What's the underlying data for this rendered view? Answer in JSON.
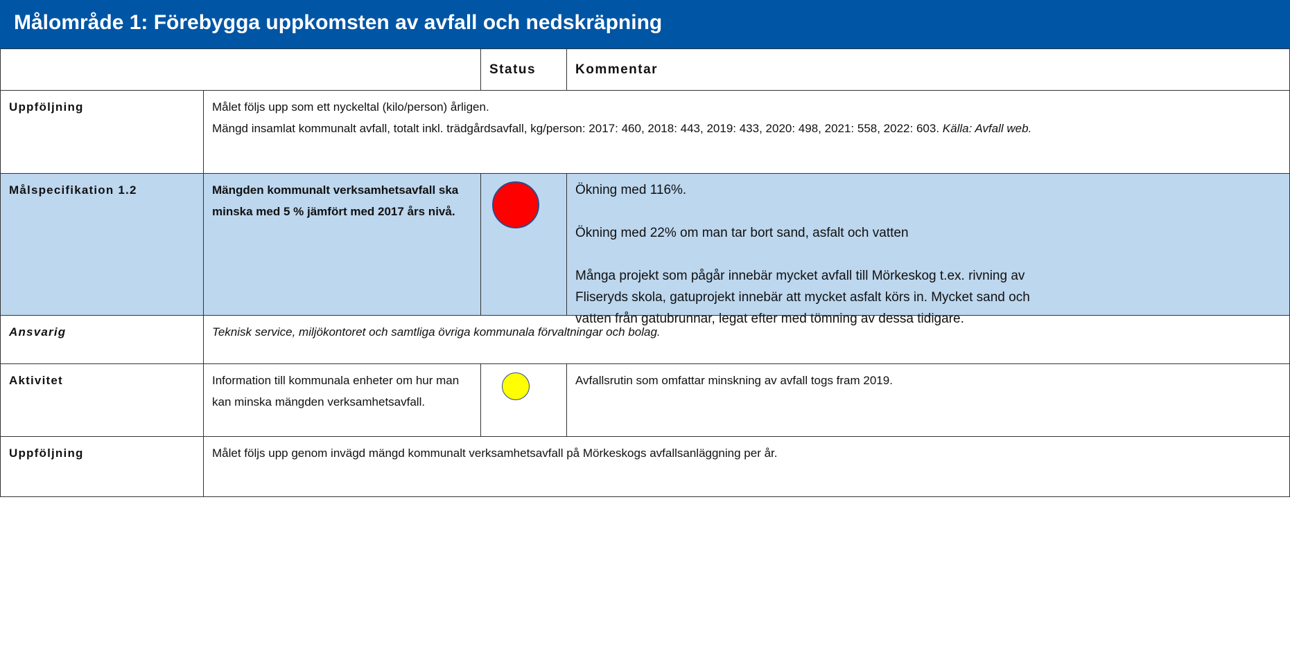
{
  "header": {
    "title": "Målområde 1: Förebygga uppkomsten av avfall och nedskräpning"
  },
  "table": {
    "columns": [
      "Status",
      "Kommentar"
    ],
    "rows": [
      {
        "label": "Uppföljning",
        "text": [
          "Målet följs upp som ett nyckeltal (kilo/person) årligen.",
          "Mängd insamlat kommunalt avfall, totalt inkl. trädgårdsavfall, kg/person: 2017: 460, 2018: 443, 2019: 433, 2020: 498, 2021: 558, 2022: 603."
        ],
        "source": "Källa: Avfall web."
      },
      {
        "label": "Målspecifikation 1.2",
        "goal": "Mängden kommunalt verksamhetsavfall ska minska med 5 % jämfört med 2017 års nivå.",
        "comments": [
          "Ökning med 116%.",
          "Ökning med 22% om man tar bort sand, asfalt och vatten",
          "Många projekt som pågår innebär mycket avfall till Mörkeskog t.ex. rivning av Fliseryds skola, gatuprojekt innebär att mycket asfalt körs in. Mycket sand och vatten från gatubrunnar, legat efter med tömning av dessa tidigare."
        ]
      },
      {
        "label": "Ansvarig",
        "text": "Teknisk service, miljökontoret och samtliga övriga kommunala förvaltningar och bolag."
      },
      {
        "label": "Aktivitet",
        "text": "Information till kommunala enheter om hur man kan minska mängden verksamhetsavfall.",
        "comment": "Avfallsrutin som omfattar minskning av avfall togs fram 2019."
      },
      {
        "label": "Uppföljning",
        "text": "Målet följs upp genom invägd mängd kommunalt verksamhetsavfall på Mörkeskogs avfallsanläggning per år."
      }
    ]
  }
}
